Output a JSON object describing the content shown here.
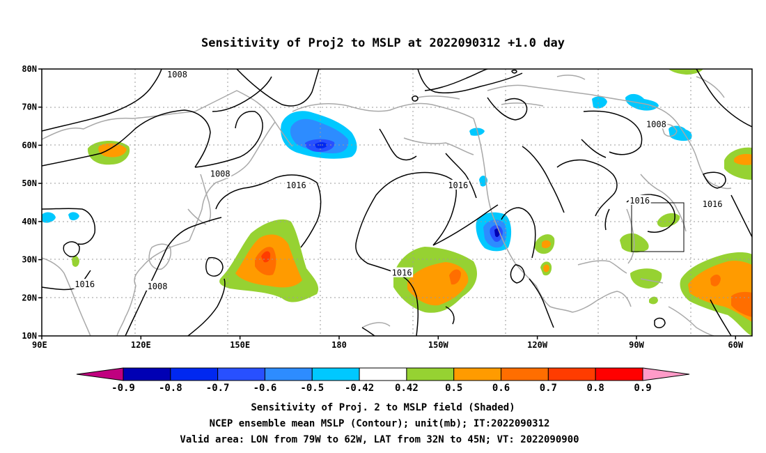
{
  "title": "Sensitivity of Proj2 to MSLP at 2022090312 +1.0 day",
  "map": {
    "lon_range": [
      90,
      305
    ],
    "lat_range": [
      10,
      80
    ],
    "lon_ticks": [
      {
        "lon": 90,
        "label": "90E"
      },
      {
        "lon": 120,
        "label": "120E"
      },
      {
        "lon": 150,
        "label": "150E"
      },
      {
        "lon": 180,
        "label": "180"
      },
      {
        "lon": 210,
        "label": "150W"
      },
      {
        "lon": 240,
        "label": "120W"
      },
      {
        "lon": 270,
        "label": "90W"
      },
      {
        "lon": 300,
        "label": "60W"
      }
    ],
    "lat_ticks": [
      {
        "lat": 10,
        "label": "10N"
      },
      {
        "lat": 20,
        "label": "20N"
      },
      {
        "lat": 30,
        "label": "30N"
      },
      {
        "lat": 40,
        "label": "40N"
      },
      {
        "lat": 50,
        "label": "50N"
      },
      {
        "lat": 60,
        "label": "60N"
      },
      {
        "lat": 70,
        "label": "70N"
      },
      {
        "lat": 80,
        "label": "80N"
      }
    ],
    "grid": "dotted",
    "contour_labels": [
      {
        "text": "1008",
        "lon": 131,
        "lat": 78.5
      },
      {
        "text": "1008",
        "lon": 144,
        "lat": 52.5
      },
      {
        "text": "1016",
        "lon": 167,
        "lat": 49.5
      },
      {
        "text": "1016",
        "lon": 216,
        "lat": 49.5
      },
      {
        "text": "1016",
        "lon": 199,
        "lat": 26.5
      },
      {
        "text": "1008",
        "lon": 276,
        "lat": 65.5
      },
      {
        "text": "1016",
        "lon": 271,
        "lat": 45.5
      },
      {
        "text": "1016",
        "lon": 293,
        "lat": 44.5
      },
      {
        "text": "1016",
        "lon": 103,
        "lat": 23.5
      },
      {
        "text": "1008",
        "lon": 125,
        "lat": 23.0
      }
    ],
    "valid_box": {
      "lon_min": 281,
      "lon_max": 298,
      "lat_min": 32,
      "lat_max": 45
    }
  },
  "colorbar": {
    "colors": [
      "#c0007f",
      "#0000b4",
      "#0028f0",
      "#2850ff",
      "#2d8cff",
      "#00c8ff",
      "#ffffff",
      "#96d232",
      "#ff9b00",
      "#ff6e00",
      "#ff3c00",
      "#ff0000",
      "#ff9bc8"
    ],
    "labels": [
      "-0.9",
      "-0.8",
      "-0.7",
      "-0.6",
      "-0.5",
      "-0.42",
      "0.42",
      "0.5",
      "0.6",
      "0.7",
      "0.8",
      "0.9"
    ]
  },
  "footer": {
    "line1": "Sensitivity of Proj. 2 to MSLP field (Shaded)",
    "line2": "NCEP ensemble mean MSLP (Contour); unit(mb); IT:2022090312",
    "line3": "Valid area: LON from 79W to 62W, LAT from 32N to 45N; VT: 2022090900"
  }
}
